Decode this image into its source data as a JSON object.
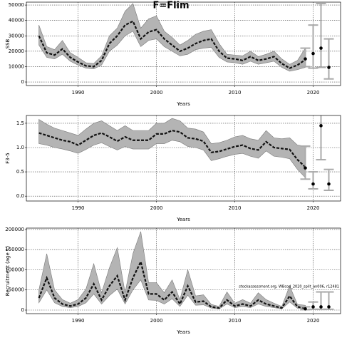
{
  "title": "F=Flim",
  "chart_data": [
    {
      "type": "band-line",
      "ylabel": "SSB",
      "xlabel": "Years",
      "xlim": [
        1983.4,
        2023.5
      ],
      "xticks": [
        1990,
        2000,
        2010,
        2020
      ],
      "ylim": [
        -2300,
        51900
      ],
      "yticks": [
        0,
        10000,
        20000,
        30000,
        40000,
        50000
      ],
      "grid": true,
      "x": [
        1985,
        1986,
        1987,
        1988,
        1989,
        1990,
        1991,
        1992,
        1993,
        1994,
        1995,
        1996,
        1997,
        1998,
        1999,
        2000,
        2001,
        2002,
        2003,
        2004,
        2005,
        2006,
        2007,
        2008,
        2009,
        2010,
        2011,
        2012,
        2013,
        2014,
        2015,
        2016,
        2017,
        2018,
        2019
      ],
      "values": [
        30000,
        19000,
        17500,
        21500,
        16000,
        13000,
        10500,
        10000,
        14000,
        25000,
        30000,
        37000,
        39500,
        28000,
        32500,
        34000,
        28000,
        24000,
        20000,
        22000,
        25000,
        27000,
        28000,
        20000,
        15500,
        15000,
        14000,
        16500,
        14000,
        15000,
        16500,
        12000,
        9000,
        11000,
        14500
      ],
      "lower": [
        24000,
        16000,
        15000,
        18000,
        13500,
        11000,
        9000,
        8500,
        11000,
        20000,
        24000,
        30000,
        33000,
        23000,
        27000,
        28000,
        23000,
        20000,
        17000,
        18000,
        21000,
        22000,
        22500,
        16000,
        13000,
        12500,
        11500,
        13500,
        11500,
        12500,
        13500,
        9500,
        7000,
        8000,
        9500
      ],
      "upper": [
        37000,
        23000,
        21000,
        27000,
        19000,
        16000,
        12500,
        12000,
        17000,
        30000,
        35000,
        46000,
        51000,
        35000,
        41000,
        43000,
        33000,
        29000,
        24000,
        27000,
        31000,
        33000,
        34000,
        25000,
        18000,
        17500,
        17000,
        20000,
        16500,
        18000,
        20000,
        15000,
        11500,
        14000,
        22000
      ],
      "points": {
        "x": [
          2019,
          2020,
          2021,
          2022
        ],
        "values": [
          15000,
          18500,
          22000,
          9500
        ],
        "lower": [
          10000,
          9000,
          9500,
          2000
        ],
        "upper": [
          22000,
          37000,
          51000,
          28000
        ]
      }
    },
    {
      "type": "band-line",
      "ylabel": "F3-5",
      "xlabel": "Years",
      "xlim": [
        1983.4,
        2023.5
      ],
      "xticks": [
        1990,
        2000,
        2010,
        2020
      ],
      "ylim": [
        -0.1,
        1.66
      ],
      "yticks": [
        {
          "value": 0,
          "label": "0.0"
        },
        {
          "value": 0.5,
          "label": "0.5"
        },
        {
          "value": 1,
          "label": "1.0"
        },
        1.5
      ],
      "grid": true,
      "x": [
        1985,
        1986,
        1987,
        1988,
        1989,
        1990,
        1991,
        1992,
        1993,
        1994,
        1995,
        1996,
        1997,
        1998,
        1999,
        2000,
        2001,
        2002,
        2003,
        2004,
        2005,
        2006,
        2007,
        2008,
        2009,
        2010,
        2011,
        2012,
        2013,
        2014,
        2015,
        2016,
        2017,
        2018,
        2019
      ],
      "values": [
        1.3,
        1.25,
        1.2,
        1.15,
        1.12,
        1.05,
        1.15,
        1.25,
        1.3,
        1.22,
        1.13,
        1.22,
        1.15,
        1.15,
        1.15,
        1.28,
        1.28,
        1.35,
        1.32,
        1.2,
        1.18,
        1.13,
        0.9,
        0.92,
        0.97,
        1.02,
        1.05,
        0.98,
        0.95,
        1.12,
        1,
        0.98,
        0.96,
        0.75,
        0.6
      ],
      "lower": [
        1.08,
        1.05,
        1,
        0.97,
        0.93,
        0.88,
        0.96,
        1.05,
        1.1,
        1.02,
        0.95,
        1.02,
        0.97,
        0.97,
        0.97,
        1.08,
        1.08,
        1.15,
        1.12,
        1.02,
        1,
        0.95,
        0.73,
        0.77,
        0.82,
        0.86,
        0.88,
        0.82,
        0.78,
        0.93,
        0.82,
        0.8,
        0.77,
        0.55,
        0.38
      ],
      "upper": [
        1.58,
        1.48,
        1.4,
        1.35,
        1.3,
        1.25,
        1.38,
        1.5,
        1.55,
        1.45,
        1.35,
        1.45,
        1.35,
        1.35,
        1.35,
        1.5,
        1.5,
        1.6,
        1.55,
        1.4,
        1.38,
        1.32,
        1.08,
        1.1,
        1.15,
        1.22,
        1.25,
        1.18,
        1.15,
        1.35,
        1.2,
        1.18,
        1.2,
        1.05,
        1.03
      ],
      "points": {
        "x": [
          2019,
          2020,
          2021,
          2022
        ],
        "values": [
          0.58,
          0.25,
          1.45,
          0.25
        ],
        "lower": [
          0.35,
          0.15,
          0.75,
          0.12
        ],
        "upper": [
          1.03,
          0.5,
          1.75,
          0.55
        ]
      }
    },
    {
      "type": "band-line",
      "ylabel": "Recruitment (age 1)",
      "xlabel": "Years",
      "annotation": "stockassessment.org, WBcod_2020_split_an006, r12481",
      "xlim": [
        1983.4,
        2023.5
      ],
      "xticks": [
        1990,
        2000,
        2010,
        2020
      ],
      "ylim": [
        -8850,
        203500
      ],
      "yticks": [
        0,
        50000,
        100000,
        150000,
        200000
      ],
      "grid": true,
      "x": [
        1985,
        1986,
        1987,
        1988,
        1989,
        1990,
        1991,
        1992,
        1993,
        1994,
        1995,
        1996,
        1997,
        1998,
        1999,
        2000,
        2001,
        2002,
        2003,
        2004,
        2005,
        2006,
        2007,
        2008,
        2009,
        2010,
        2011,
        2012,
        2013,
        2014,
        2015,
        2016,
        2017,
        2018,
        2019
      ],
      "values": [
        30000,
        80000,
        30000,
        15000,
        10000,
        15000,
        30000,
        65000,
        25000,
        60000,
        85000,
        25000,
        80000,
        120000,
        40000,
        40000,
        25000,
        45000,
        15000,
        60000,
        20000,
        22000,
        8000,
        5000,
        25000,
        10000,
        15000,
        10000,
        25000,
        15000,
        10000,
        5000,
        35000,
        8000,
        5000
      ],
      "lower": [
        18000,
        50000,
        18000,
        9000,
        6000,
        9000,
        18000,
        40000,
        15000,
        36000,
        52000,
        15000,
        50000,
        75000,
        25000,
        24000,
        15000,
        28000,
        9000,
        37000,
        12000,
        13000,
        5000,
        3000,
        15000,
        6000,
        9000,
        6000,
        15000,
        9000,
        6000,
        3000,
        20000,
        4500,
        2500
      ],
      "upper": [
        50000,
        140000,
        50000,
        26000,
        17000,
        26000,
        52000,
        115000,
        43000,
        105000,
        155000,
        43000,
        140000,
        195000,
        68000,
        68000,
        43000,
        75000,
        26000,
        100000,
        35000,
        38000,
        14000,
        9000,
        45000,
        17000,
        26000,
        17000,
        43000,
        26000,
        17000,
        9000,
        60000,
        14000,
        12000
      ],
      "points": {
        "x": [
          2019,
          2020,
          2021,
          2022
        ],
        "values": [
          3000,
          8000,
          8000,
          8000
        ],
        "lower": [
          1000,
          2000,
          2000,
          2000
        ],
        "upper": [
          8000,
          20000,
          45000,
          45000
        ]
      }
    }
  ]
}
